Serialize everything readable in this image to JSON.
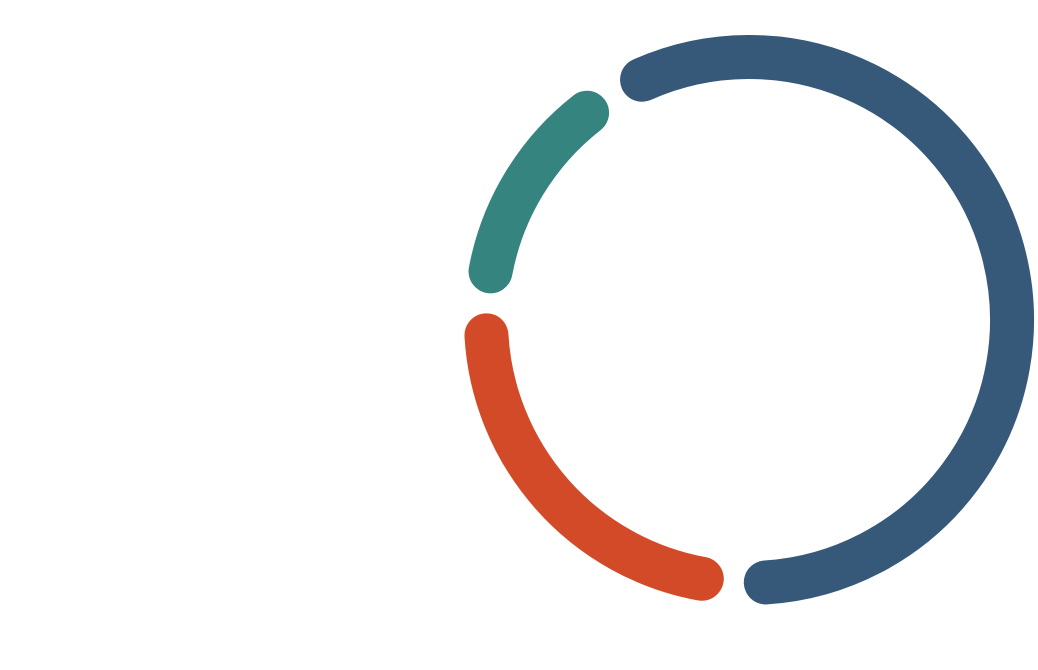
{
  "chart_data": {
    "type": "pie",
    "style": "donut-ring-with-gaps",
    "title": "",
    "series": [
      {
        "value": 63,
        "color": "#365879"
      },
      {
        "value": 24,
        "color": "#d24a27"
      },
      {
        "value": 13,
        "color": "#368480"
      }
    ],
    "legend": "none",
    "labels": "none"
  }
}
